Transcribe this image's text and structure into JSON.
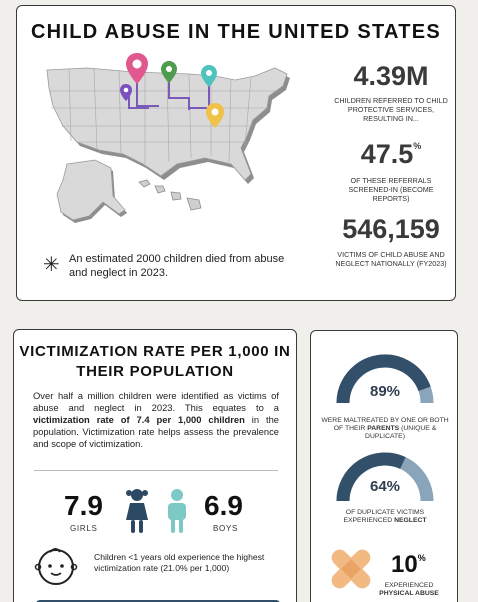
{
  "header": {
    "title": "CHILD ABUSE IN THE UNITED STATES"
  },
  "stats": [
    {
      "value": "4.39M",
      "label": "CHILDREN REFERRED TO CHILD PROTECTIVE SERVICES, RESULTING IN..."
    },
    {
      "value": "47.5",
      "unit": "%",
      "label": "OF THESE REFERRALS SCREENED-IN (BECOME REPORTS)"
    },
    {
      "value": "546,159",
      "label": "VICTIMS OF CHILD ABUSE AND NEGLECT NATIONALLY (FY2023)"
    }
  ],
  "note": "An estimated 2000 children died from abuse and neglect in 2023.",
  "rate": {
    "title": "VICTIMIZATION RATE  PER 1,000 IN THEIR POPULATION",
    "body_1": "Over half a million children were identified as victims of abuse and neglect in 2023. This equates to a ",
    "body_bold": "victimization rate of 7.4 per 1,000 children",
    "body_2": " in the population. Victimization rate helps assess the prevalence and scope of victimization.",
    "girls_value": "7.9",
    "girls_label": "GIRLS",
    "boys_value": "6.9",
    "boys_label": "BOYS",
    "infant_note": "Children <1 years old experience the highest victimization rate (21.0% per 1,000)"
  },
  "side": {
    "gauge1": {
      "value": "89%",
      "fraction": 0.89,
      "caption_1": "WERE MALTREATED BY ONE OR BOTH OF THEIR ",
      "caption_bold": "PARENTS",
      "caption_2": " (UNIQUE & DUPLICATE)"
    },
    "gauge2": {
      "value": "64%",
      "fraction": 0.64,
      "caption_1": "OF DUPLICATE VICTIMS EXPERIENCED ",
      "caption_bold": "NEGLECT"
    },
    "physical": {
      "value": "10",
      "unit": "%",
      "caption_1": "EXPERIENCED",
      "caption_bold": "PHYSICAL ABUSE"
    }
  },
  "colors": {
    "dark_navy": "#33506a",
    "light_blue": "#8aa5ba",
    "teal": "#7dc9c6",
    "girl_navy": "#2c4a63",
    "bandage": "#f2b983",
    "pin_pink": "#e0588f",
    "pin_green": "#4f9b4f",
    "pin_purple": "#7a4fc0",
    "pin_teal": "#4cc3bd",
    "pin_yellow": "#f0c24a"
  }
}
